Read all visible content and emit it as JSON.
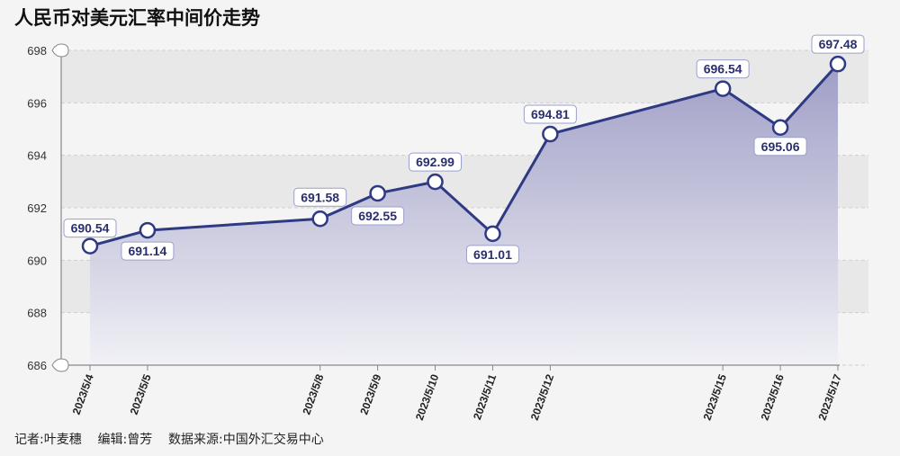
{
  "page": {
    "title": "人民币对美元汇率中间价走势",
    "credits": "记者:叶麦穗    编辑:曾芳    数据来源:中国外汇交易中心"
  },
  "colors": {
    "background": "#f4f4f4",
    "band": "#e8e8e8",
    "line": "#2e3a82",
    "area_top": "#9b9ac4",
    "area_bottom": "#f0f0f6",
    "point_fill": "#ffffff"
  },
  "chart_data": {
    "type": "area",
    "title": "人民币对美元汇率中间价走势",
    "xlabel": "",
    "ylabel": "",
    "ylim": [
      686,
      698
    ],
    "yticks": [
      686,
      688,
      690,
      692,
      694,
      696,
      698
    ],
    "x_axis": "date",
    "grid": true,
    "categories": [
      "2023/5/4",
      "2023/5/5",
      "2023/5/8",
      "2023/5/9",
      "2023/5/10",
      "2023/5/11",
      "2023/5/12",
      "2023/5/15",
      "2023/5/16",
      "2023/5/17"
    ],
    "series": [
      {
        "values": [
          690.54,
          691.14,
          691.58,
          692.55,
          692.99,
          691.01,
          694.81,
          696.54,
          695.06,
          697.48
        ],
        "labels": [
          "690.54",
          "691.14",
          "691.58",
          "692.55",
          "692.99",
          "691.01",
          "694.81",
          "696.54",
          "695.06",
          "697.48"
        ]
      }
    ]
  }
}
